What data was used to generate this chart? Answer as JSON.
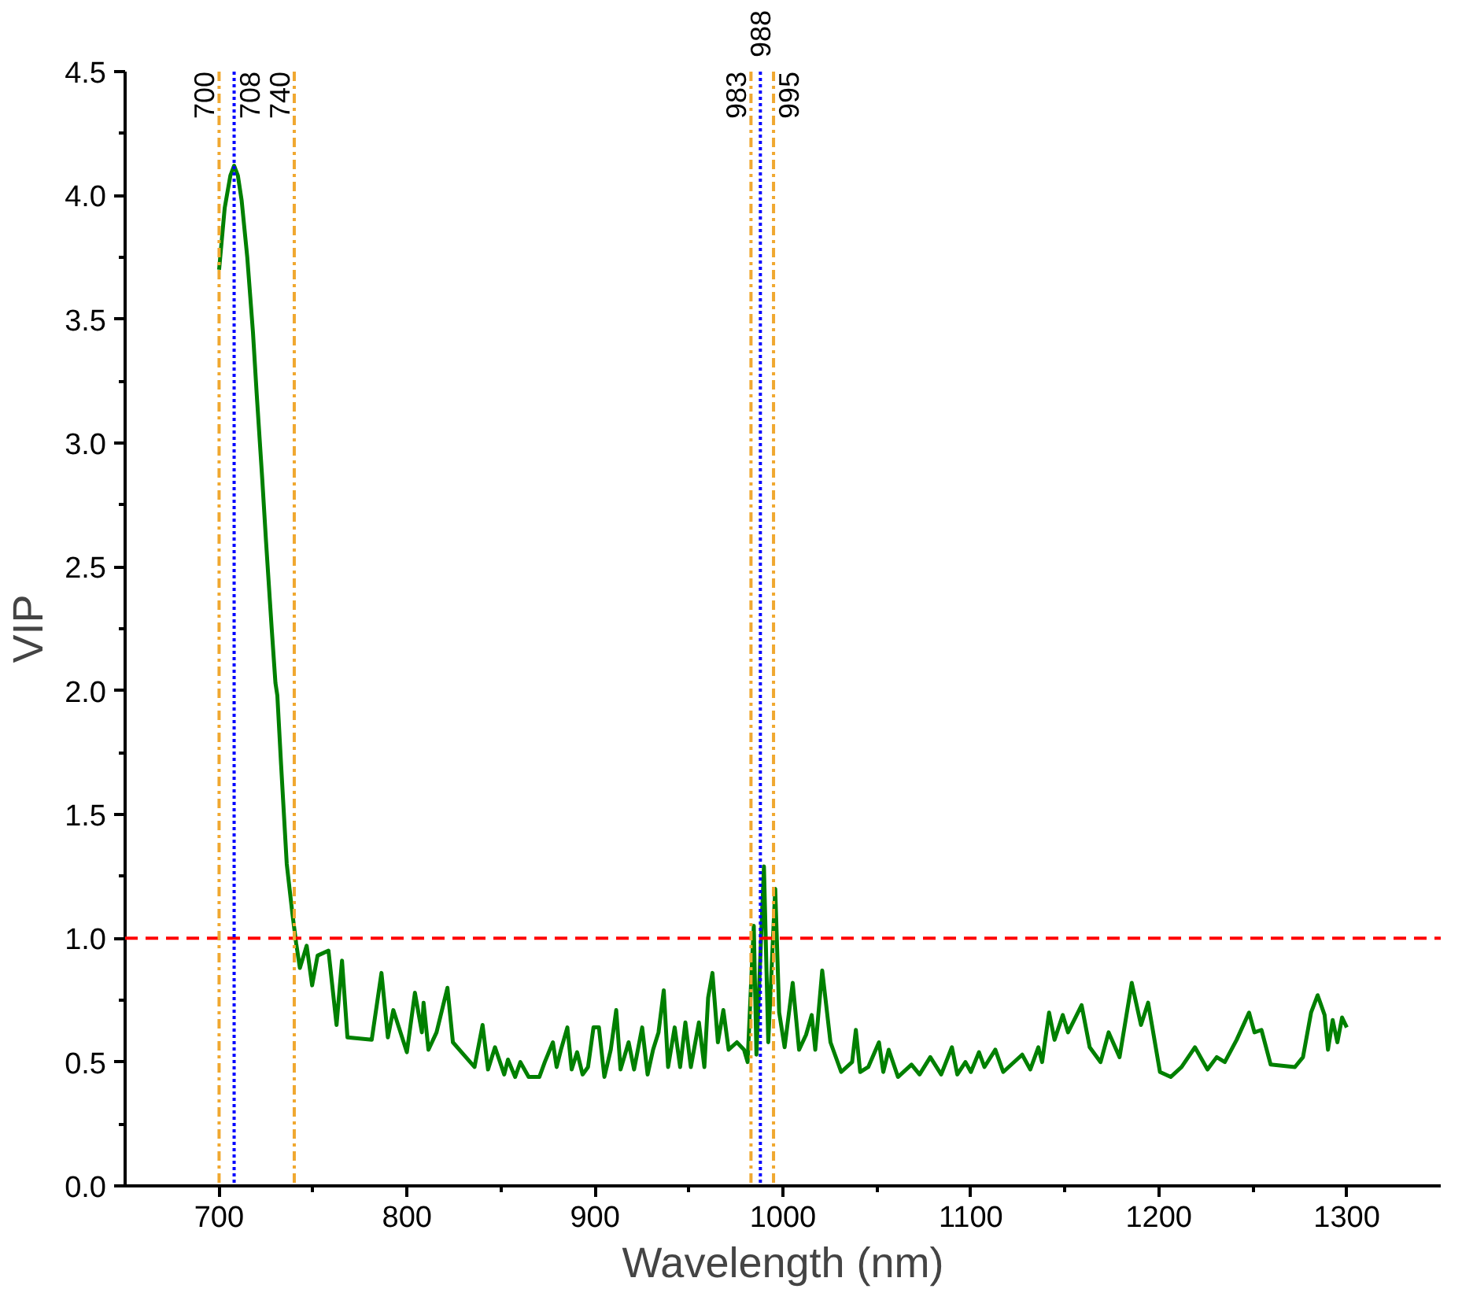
{
  "chart_data": {
    "type": "line",
    "xlabel": "Wavelength (nm)",
    "ylabel": "VIP",
    "x": [
      700,
      703,
      706,
      708,
      710,
      712,
      715,
      718,
      720,
      723,
      725,
      728,
      730,
      731,
      733,
      736,
      739,
      741,
      743,
      745,
      746.6,
      749.5,
      752.4,
      758.2,
      762.5,
      765.4,
      768.3,
      781.2,
      786.4,
      789.8,
      792.7,
      799.9,
      804.2,
      807.9,
      808.8,
      811.4,
      815.7,
      821.5,
      824.4,
      830.1,
      835.9,
      840.2,
      843.1,
      846.8,
      851.7,
      853.7,
      857.5,
      860.3,
      864.7,
      870.4,
      873.3,
      877.6,
      879.6,
      881.9,
      885.3,
      887.6,
      890.5,
      893.4,
      896.3,
      899.2,
      902.1,
      905.0,
      908.4,
      911.3,
      913.6,
      917.9,
      920.8,
      925.1,
      928.0,
      930.9,
      933.8,
      936.6,
      938.9,
      942.4,
      945.3,
      948.1,
      951.0,
      955.3,
      958.2,
      960.2,
      962.5,
      965.4,
      968.3,
      971.1,
      975.5,
      979.3,
      981.2,
      983.6,
      984.5,
      985.9,
      987.9,
      989.9,
      992.2,
      995.9,
      998.0,
      1000.9,
      1005.2,
      1008.6,
      1012.3,
      1015.3,
      1017.2,
      1020.9,
      1025.3,
      1031,
      1036.8,
      1038.8,
      1041.1,
      1045.4,
      1051.1,
      1053.4,
      1056.3,
      1061.2,
      1068.4,
      1072.7,
      1078.4,
      1084.2,
      1089.9,
      1092.8,
      1097.1,
      1100,
      1104.3,
      1107.2,
      1113,
      1117.2,
      1127.3,
      1131.6,
      1135.9,
      1137.9,
      1141.6,
      1144.5,
      1148.9,
      1151.7,
      1158.9,
      1163.2,
      1169,
      1173.3,
      1179.1,
      1185.6,
      1190.5,
      1194.3,
      1200.6,
      1206.3,
      1212.1,
      1219.2,
      1225.9,
      1230.8,
      1235.1,
      1241.4,
      1248,
      1250.9,
      1254.6,
      1259.5,
      1272.4,
      1276.7,
      1281,
      1284.5,
      1288.2,
      1290,
      1292.5,
      1295,
      1297.5,
      1300
    ],
    "series": [
      {
        "color": "#008000",
        "values": [
          3.7,
          3.95,
          4.08,
          4.12,
          4.08,
          3.98,
          3.75,
          3.45,
          3.2,
          2.85,
          2.6,
          2.25,
          2.03,
          1.98,
          1.7,
          1.3,
          1.1,
          0.98,
          0.88,
          0.93,
          0.97,
          0.81,
          0.93,
          0.95,
          0.65,
          0.91,
          0.6,
          0.59,
          0.86,
          0.6,
          0.71,
          0.54,
          0.78,
          0.62,
          0.74,
          0.55,
          0.62,
          0.8,
          0.58,
          0.53,
          0.48,
          0.65,
          0.47,
          0.56,
          0.45,
          0.51,
          0.44,
          0.5,
          0.44,
          0.44,
          0.5,
          0.58,
          0.48,
          0.55,
          0.64,
          0.47,
          0.54,
          0.45,
          0.48,
          0.64,
          0.64,
          0.44,
          0.55,
          0.71,
          0.47,
          0.58,
          0.47,
          0.64,
          0.45,
          0.55,
          0.62,
          0.79,
          0.48,
          0.64,
          0.48,
          0.66,
          0.48,
          0.66,
          0.48,
          0.76,
          0.86,
          0.58,
          0.71,
          0.55,
          0.58,
          0.55,
          0.5,
          0.91,
          1.05,
          0.53,
          0.91,
          1.29,
          0.58,
          1.2,
          0.7,
          0.56,
          0.82,
          0.55,
          0.61,
          0.69,
          0.55,
          0.87,
          0.58,
          0.46,
          0.5,
          0.63,
          0.46,
          0.48,
          0.58,
          0.46,
          0.55,
          0.44,
          0.49,
          0.45,
          0.52,
          0.45,
          0.56,
          0.45,
          0.5,
          0.46,
          0.54,
          0.48,
          0.55,
          0.46,
          0.53,
          0.47,
          0.56,
          0.5,
          0.7,
          0.59,
          0.69,
          0.62,
          0.73,
          0.56,
          0.5,
          0.62,
          0.52,
          0.82,
          0.65,
          0.74,
          0.46,
          0.44,
          0.48,
          0.56,
          0.47,
          0.52,
          0.5,
          0.59,
          0.7,
          0.62,
          0.63,
          0.49,
          0.48,
          0.52,
          0.7,
          0.77,
          0.69,
          0.55,
          0.67,
          0.58,
          0.68,
          0.64
        ]
      }
    ],
    "xlim": [
      650,
      1350
    ],
    "xticks": [
      700,
      800,
      900,
      1000,
      1100,
      1200,
      1300
    ],
    "ylim": [
      0,
      4.5
    ],
    "yticks": [
      {
        "value": 0,
        "label": "0.0"
      },
      {
        "value": 0.5,
        "label": "0.5"
      },
      {
        "value": 1,
        "label": "1.0"
      },
      {
        "value": 1.5,
        "label": "1.5"
      },
      {
        "value": 2,
        "label": "2.0"
      },
      {
        "value": 2.5,
        "label": "2.5"
      },
      {
        "value": 3,
        "label": "3.0"
      },
      {
        "value": 3.5,
        "label": "3.5"
      },
      {
        "value": 4,
        "label": "4.0"
      },
      {
        "value": 4.5,
        "label": "4.5"
      }
    ],
    "ref_lines": [
      {
        "axis": "y",
        "value": 1.0,
        "color": "#ff0000",
        "line_style": "dashed"
      },
      {
        "axis": "x",
        "value": 700,
        "label": "700",
        "color": "#f0a830",
        "line_style": "dashdot"
      },
      {
        "axis": "x",
        "value": 708,
        "label": "708",
        "color": "#0000ff",
        "line_style": "dotted"
      },
      {
        "axis": "x",
        "value": 740,
        "label": "740",
        "color": "#f0a830",
        "line_style": "dashdot"
      },
      {
        "axis": "x",
        "value": 983,
        "label": "983",
        "color": "#f0a830",
        "line_style": "dashdot"
      },
      {
        "axis": "x",
        "value": 988,
        "label": "988",
        "color": "#0000ff",
        "line_style": "dotted"
      },
      {
        "axis": "x",
        "value": 995,
        "label": "995",
        "color": "#f0a830",
        "line_style": "dashdot"
      }
    ],
    "grid": false,
    "line_style": "solid",
    "marker": "none"
  }
}
